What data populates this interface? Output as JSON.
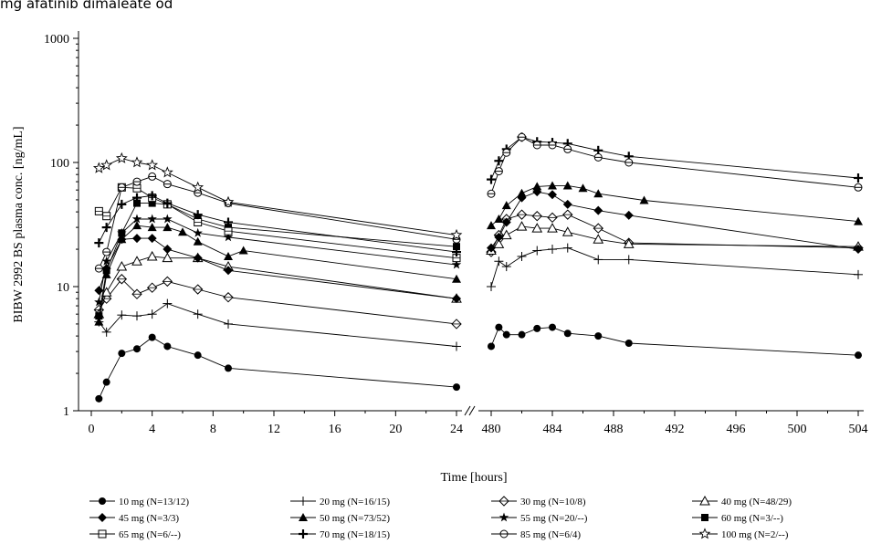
{
  "caption": "mg afatinib dimaleate od",
  "chart_data": {
    "type": "line",
    "ylabel": "BIBW 2992 BS plasma conc. [ng/mL]",
    "xlabel": "Time [hours]",
    "y_scale": "log",
    "ylim": [
      1,
      1000
    ],
    "y_ticks": [
      1,
      10,
      100,
      1000
    ],
    "y_tick_labels": [
      "1",
      "10",
      "100",
      "1000"
    ],
    "x_axis_break": true,
    "segments": [
      {
        "xlim": [
          0,
          24
        ],
        "ticks": [
          0,
          4,
          8,
          12,
          16,
          20,
          24
        ],
        "tick_labels": [
          "0",
          "4",
          "8",
          "12",
          "16",
          "20",
          "24"
        ]
      },
      {
        "xlim": [
          479.6,
          504
        ],
        "ticks": [
          480,
          484,
          488,
          492,
          496,
          500,
          504
        ],
        "tick_labels": [
          "480",
          "484",
          "488",
          "492",
          "496",
          "500",
          "504"
        ]
      }
    ],
    "series": [
      {
        "name": "10 mg (N=13/12)",
        "marker": "filled-circle",
        "day1": [
          [
            0.5,
            1.25
          ],
          [
            1,
            1.7
          ],
          [
            2,
            2.9
          ],
          [
            3,
            3.15
          ],
          [
            4,
            3.9
          ],
          [
            5,
            3.3
          ],
          [
            7,
            2.8
          ],
          [
            9,
            2.2
          ],
          [
            24,
            1.55
          ]
        ],
        "ss": [
          [
            480,
            3.3
          ],
          [
            480.5,
            4.7
          ],
          [
            481,
            4.1
          ],
          [
            482,
            4.1
          ],
          [
            483,
            4.6
          ],
          [
            484,
            4.7
          ],
          [
            485,
            4.2
          ],
          [
            487,
            4.0
          ],
          [
            489,
            3.5
          ],
          [
            504,
            2.8
          ]
        ]
      },
      {
        "name": "20 mg (N=16/15)",
        "marker": "plus",
        "day1": [
          [
            0.5,
            5.2
          ],
          [
            1,
            4.3
          ],
          [
            2,
            5.9
          ],
          [
            3,
            5.8
          ],
          [
            4,
            6
          ],
          [
            5,
            7.3
          ],
          [
            7,
            6
          ],
          [
            9,
            5
          ],
          [
            24,
            3.3
          ]
        ],
        "ss": [
          [
            480,
            10
          ],
          [
            480.5,
            16
          ],
          [
            481,
            14.5
          ],
          [
            482,
            17.5
          ],
          [
            483,
            19.5
          ],
          [
            484,
            20
          ],
          [
            485,
            20.5
          ],
          [
            487,
            16.5
          ],
          [
            489,
            16.5
          ],
          [
            504,
            12.5
          ]
        ]
      },
      {
        "name": "30 mg (N=10/8)",
        "marker": "open-diamond",
        "day1": [
          [
            0.5,
            6.5
          ],
          [
            1,
            8
          ],
          [
            2,
            11.5
          ],
          [
            3,
            8.7
          ],
          [
            4,
            9.8
          ],
          [
            5,
            11
          ],
          [
            7,
            9.5
          ],
          [
            9,
            8.2
          ],
          [
            24,
            5
          ]
        ],
        "ss": [
          [
            480,
            19
          ],
          [
            480.5,
            26
          ],
          [
            481,
            35
          ],
          [
            482,
            38
          ],
          [
            483,
            37
          ],
          [
            484,
            36
          ],
          [
            485,
            38
          ],
          [
            487,
            29.5
          ],
          [
            489,
            22.5
          ],
          [
            504,
            20.5
          ]
        ]
      },
      {
        "name": "40 mg (N=48/29)",
        "marker": "open-triangle",
        "day1": [
          [
            0.5,
            6
          ],
          [
            1,
            9
          ],
          [
            2,
            14.5
          ],
          [
            3,
            16
          ],
          [
            4,
            17.5
          ],
          [
            5,
            17
          ],
          [
            7,
            17
          ],
          [
            9,
            14.5
          ],
          [
            24,
            8
          ]
        ],
        "ss": [
          [
            480,
            19.5
          ],
          [
            480.5,
            22
          ],
          [
            481,
            26
          ],
          [
            482,
            30.5
          ],
          [
            483,
            29.5
          ],
          [
            484,
            29.5
          ],
          [
            485,
            27.5
          ],
          [
            487,
            24
          ],
          [
            489,
            22
          ],
          [
            504,
            21
          ]
        ]
      },
      {
        "name": "45 mg (N=3/3)",
        "marker": "filled-diamond",
        "day1": [
          [
            0.5,
            9.3
          ],
          [
            1,
            14
          ],
          [
            2,
            24
          ],
          [
            3,
            24.5
          ],
          [
            4,
            24.5
          ],
          [
            5,
            20
          ],
          [
            7,
            17
          ],
          [
            9,
            13.5
          ],
          [
            24,
            8
          ]
        ],
        "ss": [
          [
            480,
            20.5
          ],
          [
            480.5,
            25
          ],
          [
            481,
            33
          ],
          [
            482,
            52
          ],
          [
            483,
            58
          ],
          [
            484,
            55
          ],
          [
            485,
            46
          ],
          [
            487,
            41
          ],
          [
            489,
            37.5
          ],
          [
            504,
            20
          ]
        ]
      },
      {
        "name": "50 mg (N=73/52)",
        "marker": "filled-triangle",
        "day1": [
          [
            0.5,
            5.2
          ],
          [
            1,
            12.5
          ],
          [
            2,
            24
          ],
          [
            3,
            31
          ],
          [
            4,
            30
          ],
          [
            5,
            30
          ],
          [
            6,
            27.5
          ],
          [
            7,
            23
          ],
          [
            9,
            17.5
          ],
          [
            10,
            19.5
          ],
          [
            24,
            11.5
          ]
        ],
        "ss": [
          [
            480,
            31
          ],
          [
            480.5,
            35
          ],
          [
            481,
            45
          ],
          [
            482,
            56.5
          ],
          [
            483,
            64
          ],
          [
            484,
            65
          ],
          [
            485,
            65
          ],
          [
            486,
            62
          ],
          [
            487,
            56
          ],
          [
            490,
            49.5
          ],
          [
            504,
            33.5
          ]
        ]
      },
      {
        "name": "55 mg (N=20/--)",
        "marker": "star-asterisk",
        "day1": [
          [
            0.5,
            7.5
          ],
          [
            1,
            16
          ],
          [
            2,
            27
          ],
          [
            3,
            35
          ],
          [
            4,
            35
          ],
          [
            5,
            35
          ],
          [
            7,
            27
          ],
          [
            9,
            25
          ],
          [
            24,
            15
          ]
        ],
        "ss": []
      },
      {
        "name": "60 mg (N=3/--)",
        "marker": "filled-square",
        "day1": [
          [
            0.5,
            5.8
          ],
          [
            1,
            13.5
          ],
          [
            2,
            27
          ],
          [
            3,
            47
          ],
          [
            4,
            47
          ],
          [
            5,
            46
          ],
          [
            7,
            35
          ],
          [
            9,
            30
          ],
          [
            24,
            21
          ]
        ],
        "ss": []
      },
      {
        "name": "65 mg (N=6/--)",
        "marker": "open-square",
        "day1": [
          [
            0.5,
            40.5
          ],
          [
            1,
            37
          ],
          [
            2,
            63
          ],
          [
            3,
            62
          ],
          [
            4,
            52
          ],
          [
            5,
            46
          ],
          [
            7,
            33
          ],
          [
            9,
            28
          ],
          [
            24,
            17
          ]
        ],
        "ss": []
      },
      {
        "name": "70 mg (N=18/15)",
        "marker": "bold-plus",
        "day1": [
          [
            0.5,
            22.5
          ],
          [
            1,
            30
          ],
          [
            2,
            46
          ],
          [
            3,
            52
          ],
          [
            4,
            54
          ],
          [
            5,
            47
          ],
          [
            7,
            38
          ],
          [
            9,
            33
          ],
          [
            24,
            19
          ]
        ],
        "ss": [
          [
            480,
            73
          ],
          [
            480.5,
            103
          ],
          [
            481,
            128
          ],
          [
            482,
            160
          ],
          [
            483,
            147
          ],
          [
            484,
            145
          ],
          [
            485,
            142
          ],
          [
            487,
            125
          ],
          [
            489,
            112
          ],
          [
            504,
            75
          ]
        ]
      },
      {
        "name": "85 mg (N=6/4)",
        "marker": "open-circle",
        "day1": [
          [
            0.5,
            14
          ],
          [
            1,
            19
          ],
          [
            2,
            63
          ],
          [
            3,
            70
          ],
          [
            4,
            77
          ],
          [
            5,
            67
          ],
          [
            7,
            57
          ],
          [
            9,
            47
          ],
          [
            24,
            24
          ]
        ],
        "ss": [
          [
            480,
            56
          ],
          [
            480.5,
            85
          ],
          [
            481,
            120
          ],
          [
            482,
            160
          ],
          [
            483,
            138
          ],
          [
            484,
            138
          ],
          [
            485,
            128
          ],
          [
            487,
            110
          ],
          [
            489,
            100
          ],
          [
            504,
            63
          ]
        ]
      },
      {
        "name": "100 mg (N=2/--)",
        "marker": "open-star",
        "day1": [
          [
            0.5,
            90
          ],
          [
            1,
            95
          ],
          [
            2,
            108
          ],
          [
            3,
            100
          ],
          [
            4,
            95
          ],
          [
            5,
            83
          ],
          [
            7,
            63
          ],
          [
            9,
            48
          ],
          [
            24,
            26
          ]
        ],
        "ss": []
      }
    ]
  }
}
